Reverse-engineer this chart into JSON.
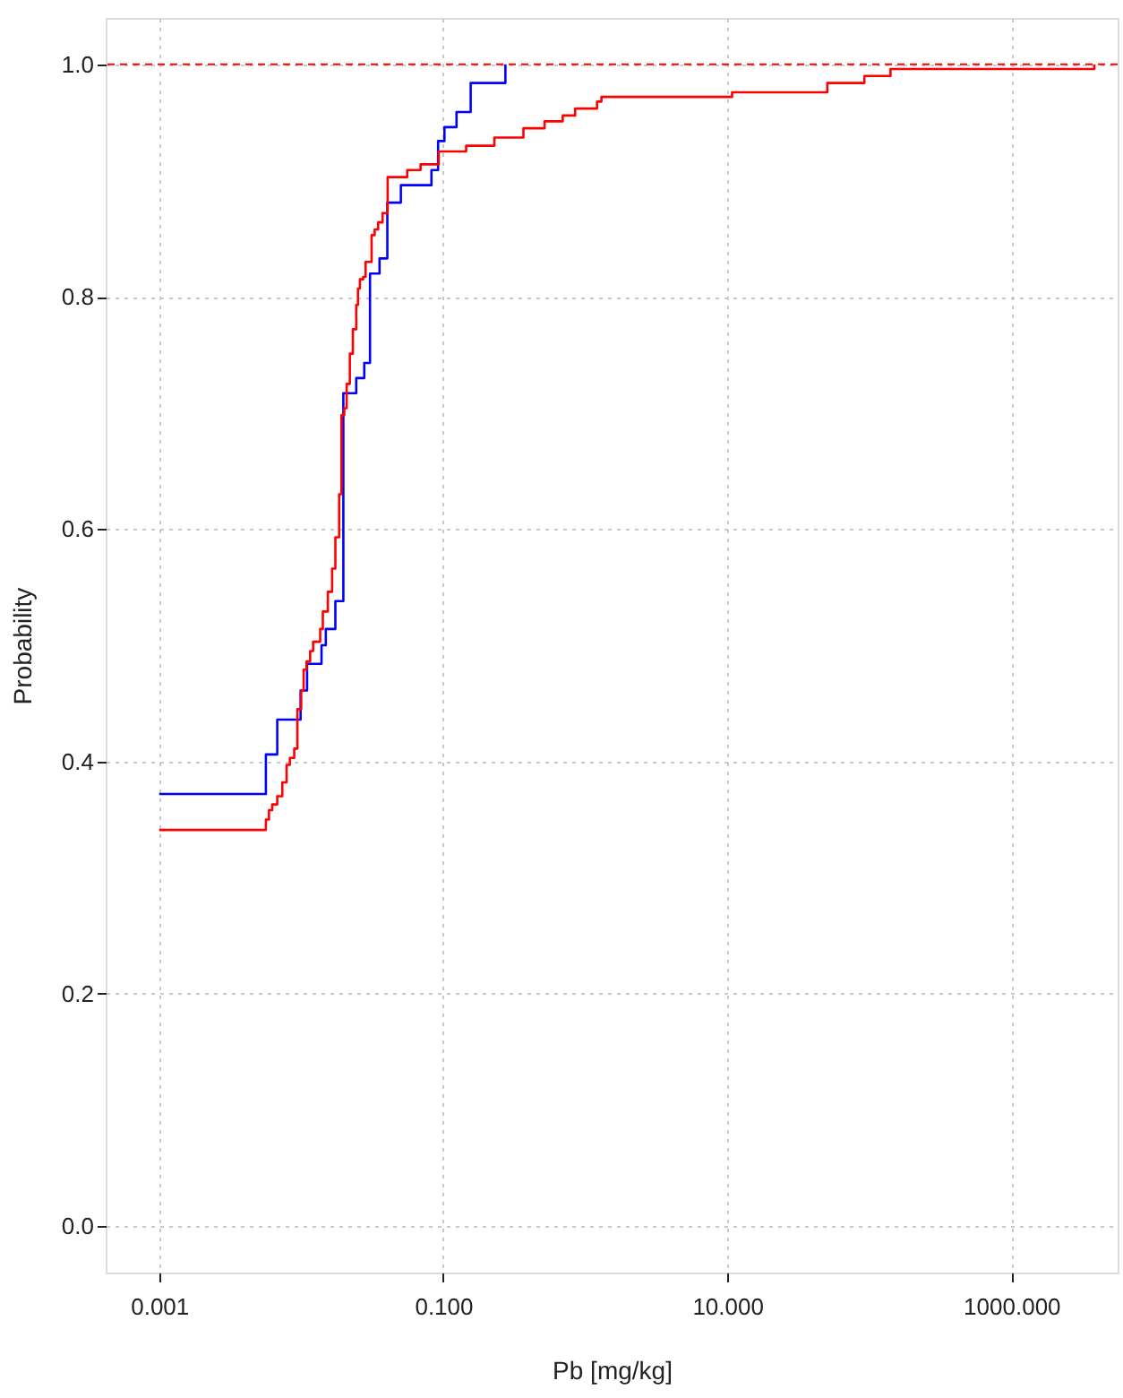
{
  "chart_data": {
    "type": "step",
    "xlabel": "Pb [mg/kg]",
    "ylabel": "Probability",
    "log": "x",
    "grid": true,
    "line_style": "solid",
    "xlim": [
      0.00042,
      5600
    ],
    "ylim": [
      -0.04,
      1.04
    ],
    "xticks": [
      {
        "value": 0.001,
        "label": "0.001"
      },
      {
        "value": 0.1,
        "label": "0.100"
      },
      {
        "value": 10,
        "label": "10.000"
      },
      {
        "value": 1000,
        "label": "1000.000"
      }
    ],
    "yticks": [
      {
        "value": 0,
        "label": "0.0"
      },
      {
        "value": 0.2,
        "label": "0.2"
      },
      {
        "value": 0.4,
        "label": "0.4"
      },
      {
        "value": 0.6,
        "label": "0.6"
      },
      {
        "value": 0.8,
        "label": "0.8"
      },
      {
        "value": 1,
        "label": "1.0"
      }
    ],
    "ref_lines": [
      {
        "axis": "y",
        "value": 1,
        "color": "#ff0000",
        "line_style": "dashed"
      }
    ],
    "series": [
      {
        "color": "#0000ff",
        "x": [
          0.001,
          0.00564,
          0.00678,
          0.0099,
          0.011,
          0.0139,
          0.0149,
          0.0174,
          0.0198,
          0.0244,
          0.0278,
          0.0305,
          0.0356,
          0.0404,
          0.0503,
          0.0826,
          0.092,
          0.102,
          0.124,
          0.156,
          0.274
        ],
        "values": [
          0.372,
          0.406,
          0.436,
          0.461,
          0.484,
          0.5,
          0.514,
          0.538,
          0.717,
          0.73,
          0.743,
          0.82,
          0.833,
          0.881,
          0.896,
          0.909,
          0.934,
          0.946,
          0.959,
          0.984,
          1.0
        ]
      },
      {
        "color": "#ff0000",
        "x": [
          0.001,
          0.00564,
          0.00593,
          0.00625,
          0.00678,
          0.00736,
          0.00789,
          0.00832,
          0.00893,
          0.0094,
          0.01,
          0.0104,
          0.0109,
          0.01156,
          0.01213,
          0.0136,
          0.0142,
          0.0154,
          0.0165,
          0.0174,
          0.0185,
          0.0192,
          0.0201,
          0.0209,
          0.022,
          0.0231,
          0.0244,
          0.0251,
          0.0259,
          0.0273,
          0.0284,
          0.0313,
          0.0329,
          0.0348,
          0.0374,
          0.0406,
          0.0558,
          0.0692,
          0.0929,
          0.145,
          0.229,
          0.367,
          0.517,
          0.694,
          0.849,
          1.21,
          1.3,
          10.8,
          50.6,
          92.3,
          141,
          3840
        ],
        "values": [
          0.341,
          0.35,
          0.358,
          0.363,
          0.37,
          0.382,
          0.397,
          0.403,
          0.411,
          0.445,
          0.461,
          0.479,
          0.486,
          0.495,
          0.503,
          0.514,
          0.529,
          0.546,
          0.566,
          0.593,
          0.63,
          0.698,
          0.704,
          0.725,
          0.751,
          0.772,
          0.793,
          0.807,
          0.815,
          0.817,
          0.83,
          0.853,
          0.858,
          0.864,
          0.872,
          0.903,
          0.909,
          0.914,
          0.925,
          0.93,
          0.937,
          0.945,
          0.951,
          0.956,
          0.962,
          0.968,
          0.972,
          0.976,
          0.984,
          0.99,
          0.996,
          1.0
        ]
      }
    ]
  }
}
